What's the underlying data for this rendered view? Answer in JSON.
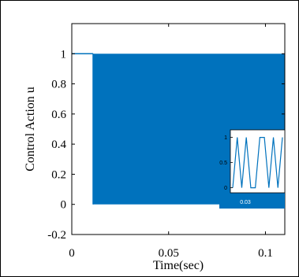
{
  "colors": {
    "series": "#0072BD",
    "inset_background": "#0072BD"
  },
  "chart_data": [
    {
      "type": "line",
      "title": "",
      "xlabel": "Time(sec)",
      "ylabel": "Control Action u",
      "xlim": [
        0,
        0.11
      ],
      "ylim": [
        -0.2,
        1.2
      ],
      "xticks": [
        0,
        0.05,
        0.1
      ],
      "xtick_labels": [
        "0",
        "0.05",
        "0.1"
      ],
      "yticks": [
        -0.2,
        0,
        0.2,
        0.4,
        0.6,
        0.8,
        1
      ],
      "ytick_labels": [
        "-0.2",
        "0",
        "0.2",
        "0.4",
        "0.6",
        "0.8",
        "1"
      ],
      "grid": false,
      "series": [
        {
          "initial_segment": {
            "x": [
              0,
              0.011
            ],
            "y": [
              1,
              1
            ]
          },
          "switching_region": {
            "x_start": 0.011,
            "x_end": 0.11,
            "y_min": 0,
            "y_max": 1
          }
        }
      ]
    },
    {
      "type": "line",
      "title": "",
      "xlabel": "0.03",
      "ylabel": "",
      "yticks": [
        0,
        0.5,
        1
      ],
      "ytick_labels": [
        "0",
        "0.5",
        "1"
      ],
      "ylim": [
        -0.1,
        1.15
      ],
      "series": [
        {
          "y": [
            0,
            1,
            0,
            1,
            0,
            0,
            1,
            1,
            0,
            1,
            0,
            1
          ]
        }
      ]
    }
  ]
}
